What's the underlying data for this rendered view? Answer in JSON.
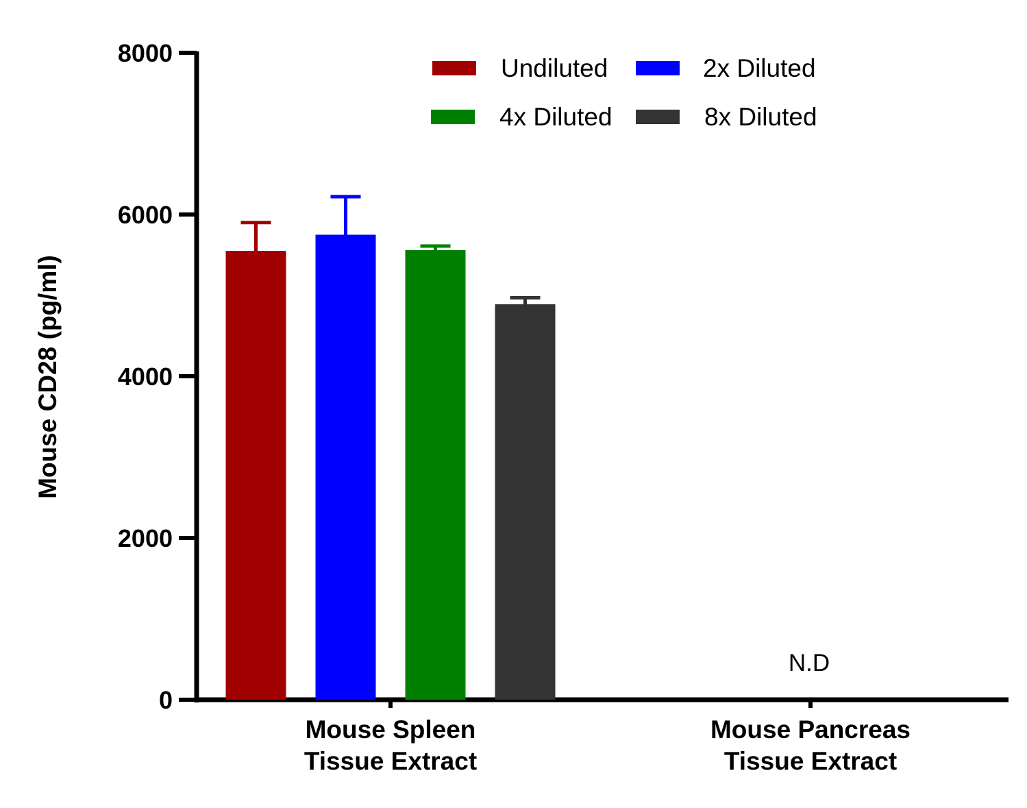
{
  "chart_data": {
    "type": "bar",
    "title": "",
    "ylabel": "Mouse CD28 (pg/ml)",
    "xlabel": "",
    "ylim": [
      0,
      8000
    ],
    "yticks": [
      "0",
      "2000",
      "4000",
      "6000",
      "8000"
    ],
    "grid": false,
    "legend_position": "top-right",
    "categories": [
      [
        "Mouse Spleen",
        "Tissue Extract"
      ],
      [
        "Mouse Pancreas",
        "Tissue Extract"
      ]
    ],
    "series": [
      {
        "name": "Undiluted",
        "color": "#A00000",
        "values": [
          5550,
          null
        ],
        "errors": [
          350,
          null
        ]
      },
      {
        "name": "2x Diluted",
        "color": "#0000FF",
        "values": [
          5750,
          null
        ],
        "errors": [
          470,
          null
        ]
      },
      {
        "name": "4x Diluted",
        "color": "#008000",
        "values": [
          5560,
          null
        ],
        "errors": [
          50,
          null
        ]
      },
      {
        "name": "8x Diluted",
        "color": "#333333",
        "values": [
          4890,
          null
        ],
        "errors": [
          80,
          null
        ]
      }
    ],
    "annotations": [
      {
        "text": "N.D",
        "category": 1
      }
    ]
  }
}
